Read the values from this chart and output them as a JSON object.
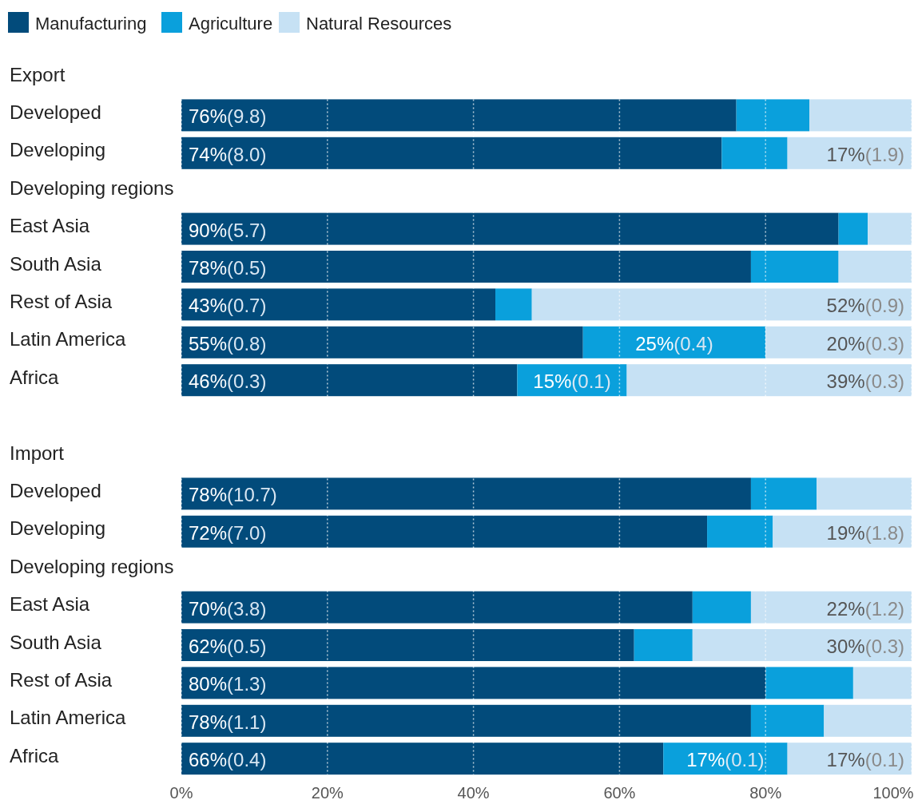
{
  "chart_data": {
    "type": "bar",
    "orientation": "horizontal",
    "stacked": true,
    "legend": "top left",
    "grid": "x",
    "categories": [
      "Export",
      "Developed",
      "Developing",
      "Developing regions",
      "East Asia",
      "South Asia",
      "Rest of Asia",
      "Latin America",
      "Africa",
      null,
      "Import",
      "Developed",
      "Developing",
      "Developing regions",
      "East Asia",
      "South Asia",
      "Rest of Asia",
      "Latin America",
      "Africa"
    ],
    "xlim": [
      0,
      100
    ],
    "xticks": [
      {
        "value": 0,
        "label": "0%"
      },
      {
        "value": 20,
        "label": "20%"
      },
      {
        "value": 40,
        "label": "40%"
      },
      {
        "value": 60,
        "label": "60%"
      },
      {
        "value": 80,
        "label": "80%"
      },
      {
        "value": 100,
        "label": "100%"
      }
    ],
    "series": [
      {
        "name": "Manufacturing",
        "color": "#024b7b",
        "values": [
          null,
          76,
          74,
          null,
          90,
          78,
          43,
          55,
          46,
          null,
          null,
          78,
          72,
          null,
          70,
          62,
          80,
          78,
          66
        ],
        "value_labels": [
          null,
          "76%(9.8)",
          "74%(8.0)",
          null,
          "90%(5.7)",
          "78%(0.5)",
          "43%(0.7)",
          "55%(0.8)",
          "46%(0.3)",
          null,
          null,
          "78%(10.7)",
          "72%(7.0)",
          null,
          "70%(3.8)",
          "62%(0.5)",
          "80%(1.3)",
          "78%(1.1)",
          "66%(0.4)"
        ]
      },
      {
        "name": "Agriculture",
        "color": "#0aa0dc",
        "values": [
          null,
          10,
          9,
          null,
          4,
          12,
          5,
          25,
          15,
          null,
          null,
          9,
          9,
          null,
          8,
          8,
          12,
          10,
          17
        ],
        "value_labels": [
          null,
          null,
          null,
          null,
          null,
          null,
          null,
          "25%(0.4)",
          "15%(0.1)",
          null,
          null,
          null,
          null,
          null,
          null,
          null,
          null,
          null,
          "17%(0.1)"
        ]
      },
      {
        "name": "Natural Resources",
        "color": "#c6e1f4",
        "values": [
          null,
          14,
          17,
          null,
          6,
          10,
          52,
          20,
          39,
          null,
          null,
          13,
          19,
          null,
          22,
          30,
          8,
          12,
          17
        ],
        "value_labels": [
          null,
          null,
          "17%(1.9)",
          null,
          null,
          null,
          "52%(0.9)",
          "20%(0.3)",
          "39%(0.3)",
          null,
          null,
          null,
          "19%(1.8)",
          null,
          "22%(1.2)",
          "30%(0.3)",
          null,
          null,
          "17%(0.1)"
        ]
      }
    ]
  }
}
